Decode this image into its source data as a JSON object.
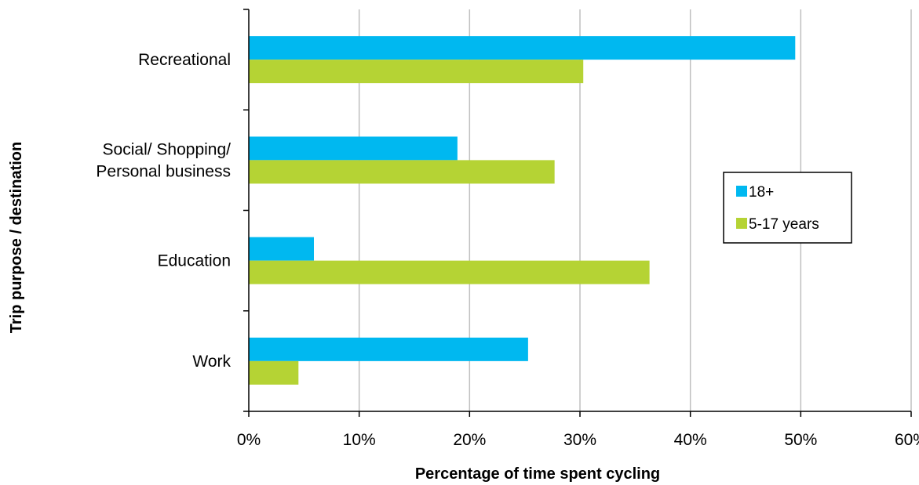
{
  "chart_data": {
    "type": "bar",
    "orientation": "horizontal",
    "categories": [
      "Work",
      "Education",
      "Social/ Shopping/ Personal business",
      "Recreational"
    ],
    "category_label_lines": [
      [
        "Work"
      ],
      [
        "Education"
      ],
      [
        "Social/ Shopping/",
        "Personal business"
      ],
      [
        "Recreational"
      ]
    ],
    "series": [
      {
        "name": "18+",
        "values": [
          25.3,
          5.9,
          18.9,
          49.5
        ],
        "color": "#00b8f0"
      },
      {
        "name": "5-17 years",
        "values": [
          4.5,
          36.3,
          27.7,
          30.3
        ],
        "color": "#b5d334"
      }
    ],
    "xlabel": "Percentage of time  spent cycling",
    "ylabel": "Trip purpose / destination",
    "xlim": [
      0,
      60
    ],
    "x_ticks": [
      0,
      10,
      20,
      30,
      40,
      50,
      60
    ],
    "x_tick_format": "percent",
    "grid": "vertical",
    "gridline_color": "#bfbfbf",
    "legend_position": "right"
  }
}
